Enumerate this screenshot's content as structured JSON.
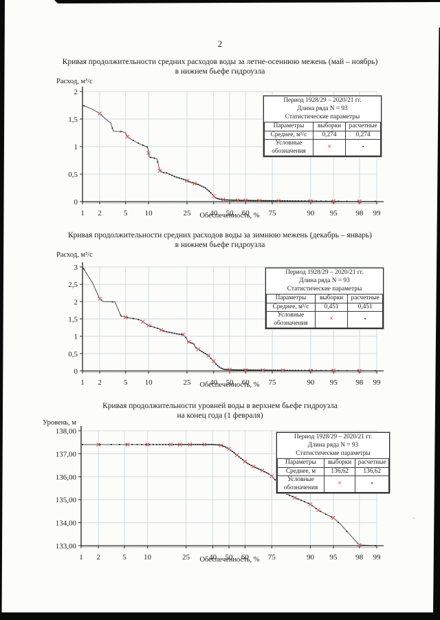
{
  "page": {
    "number": "2"
  },
  "colors": {
    "grid": "#ccdbe3",
    "curve": "#3c3c3c",
    "dot": "#1e1e1e",
    "cross": "#d06060",
    "axis": "#2e2e2e",
    "scan_edge": "#0a0a0a"
  },
  "charts": [
    {
      "title_line1": "Кривая продолжительности средних расходов воды за летне-осеннюю межень (май – ноябрь)",
      "title_line2": "в нижнем бьефе гидроузла",
      "y_axis_label": "Расход, м³/с",
      "x_axis_label": "Обеспеченность, %",
      "legend": {
        "period": "Период 1928/29 – 2020/21 гг.",
        "length": "Длина ряда N = 93",
        "stats_header": "Статистические параметры",
        "col_params": "Параметры",
        "col_sample": "выборки",
        "col_calc": "расчетные",
        "mean_label": "Среднее, м³/с",
        "mean_sample": "0,274",
        "mean_calc": "0,274",
        "symbols_label_1": "Условные",
        "symbols_label_2": "обозначения",
        "symbol_sample": "×",
        "symbol_calc": "•"
      },
      "chart_data": {
        "type": "line",
        "x_scale": "normal-probability",
        "xlabel": "Обеспеченность, %",
        "ylabel": "Расход, м³/с",
        "xlim": [
          1,
          99
        ],
        "ylim": [
          0,
          2
        ],
        "x_ticks": [
          1,
          2,
          5,
          10,
          25,
          40,
          50,
          60,
          75,
          90,
          95,
          98,
          99
        ],
        "y_ticks": [
          {
            "v": 2,
            "label": "2"
          },
          {
            "v": 1.5,
            "label": "1,5"
          },
          {
            "v": 1,
            "label": "1"
          },
          {
            "v": 0.5,
            "label": "0,5"
          },
          {
            "v": 0,
            "label": "0"
          }
        ],
        "n_points": 93,
        "points": [
          [
            1,
            1.75
          ],
          [
            1.5,
            1.68
          ],
          [
            2,
            1.6
          ],
          [
            2.5,
            1.5
          ],
          [
            3,
            1.43
          ],
          [
            3.3,
            1.28
          ],
          [
            4.5,
            1.27
          ],
          [
            5,
            1.25
          ],
          [
            5.3,
            1.18
          ],
          [
            6,
            1.13
          ],
          [
            7,
            1.08
          ],
          [
            8,
            1.04
          ],
          [
            9,
            1.01
          ],
          [
            9.7,
            0.99
          ],
          [
            10.2,
            0.81
          ],
          [
            11,
            0.8
          ],
          [
            12.5,
            0.78
          ],
          [
            13.5,
            0.56
          ],
          [
            14.5,
            0.53
          ],
          [
            16,
            0.52
          ],
          [
            17.5,
            0.49
          ],
          [
            19,
            0.46
          ],
          [
            21,
            0.43
          ],
          [
            23,
            0.41
          ],
          [
            25,
            0.38
          ],
          [
            27,
            0.35
          ],
          [
            29,
            0.33
          ],
          [
            31,
            0.31
          ],
          [
            33,
            0.28
          ],
          [
            35,
            0.25
          ],
          [
            36.5,
            0.21
          ],
          [
            38,
            0.17
          ],
          [
            39.5,
            0.12
          ],
          [
            41,
            0.07
          ],
          [
            43,
            0.05
          ],
          [
            45,
            0.04
          ],
          [
            47,
            0.032
          ],
          [
            50,
            0.028
          ],
          [
            55,
            0.024
          ],
          [
            60,
            0.022
          ],
          [
            65,
            0.02
          ],
          [
            70,
            0.018
          ],
          [
            75,
            0.016
          ],
          [
            80,
            0.014
          ],
          [
            85,
            0.012
          ],
          [
            90,
            0.011
          ],
          [
            93,
            0.009
          ],
          [
            95,
            0.008
          ],
          [
            97,
            0.006
          ],
          [
            98,
            0.005
          ],
          [
            99,
            0.004
          ]
        ],
        "cross_p": [
          2,
          5.3,
          10,
          13.5,
          25,
          29,
          40,
          46,
          55,
          60,
          68,
          78,
          90,
          95,
          98
        ]
      }
    },
    {
      "title_line1": "Кривая продолжительности средних расходов воды за зимнюю межень (декабрь – январь)",
      "title_line2": "в нижнем бьефе гидроузла",
      "y_axis_label": "Расход, м³/с",
      "x_axis_label": "Обеспеченность, %",
      "legend": {
        "period": "Период 1928/29 – 2020/21 гг.",
        "length": "Длина ряда N = 93",
        "stats_header": "Статистические параметры",
        "col_params": "Параметры",
        "col_sample": "выборки",
        "col_calc": "расчетные",
        "mean_label": "Среднее, м³/с",
        "mean_sample": "0,451",
        "mean_calc": "0,451",
        "symbols_label_1": "Условные",
        "symbols_label_2": "обозначения",
        "symbol_sample": "×",
        "symbol_calc": "•"
      },
      "chart_data": {
        "type": "line",
        "x_scale": "normal-probability",
        "xlabel": "Обеспеченность, %",
        "ylabel": "Расход, м³/с",
        "xlim": [
          1,
          99
        ],
        "ylim": [
          0,
          3
        ],
        "x_ticks": [
          1,
          2,
          5,
          10,
          25,
          40,
          50,
          60,
          75,
          90,
          95,
          98,
          99
        ],
        "y_ticks": [
          {
            "v": 3,
            "label": "3"
          },
          {
            "v": 2.5,
            "label": "2,5"
          },
          {
            "v": 2,
            "label": "2"
          },
          {
            "v": 1.5,
            "label": "1,5"
          },
          {
            "v": 1,
            "label": "1"
          },
          {
            "v": 0.5,
            "label": "0,5"
          },
          {
            "v": 0,
            "label": "0"
          }
        ],
        "n_points": 93,
        "points": [
          [
            1,
            3.0
          ],
          [
            1.5,
            2.55
          ],
          [
            2,
            2.08
          ],
          [
            2.3,
            2.0
          ],
          [
            3.5,
            1.99
          ],
          [
            4.3,
            1.58
          ],
          [
            5,
            1.55
          ],
          [
            6,
            1.52
          ],
          [
            7,
            1.5
          ],
          [
            8,
            1.46
          ],
          [
            9,
            1.38
          ],
          [
            10,
            1.31
          ],
          [
            11,
            1.28
          ],
          [
            12,
            1.25
          ],
          [
            13,
            1.22
          ],
          [
            14,
            1.18
          ],
          [
            15,
            1.15
          ],
          [
            16.5,
            1.12
          ],
          [
            18,
            1.1
          ],
          [
            19.5,
            1.08
          ],
          [
            21,
            1.06
          ],
          [
            23,
            1.05
          ],
          [
            24.5,
            0.96
          ],
          [
            25.5,
            0.85
          ],
          [
            27,
            0.81
          ],
          [
            28.5,
            0.79
          ],
          [
            29.5,
            0.68
          ],
          [
            31,
            0.62
          ],
          [
            33,
            0.56
          ],
          [
            35,
            0.5
          ],
          [
            37,
            0.44
          ],
          [
            38.5,
            0.35
          ],
          [
            40,
            0.28
          ],
          [
            41.5,
            0.2
          ],
          [
            43,
            0.13
          ],
          [
            44.5,
            0.08
          ],
          [
            46,
            0.05
          ],
          [
            48,
            0.04
          ],
          [
            50,
            0.033
          ],
          [
            55,
            0.028
          ],
          [
            60,
            0.025
          ],
          [
            65,
            0.023
          ],
          [
            70,
            0.021
          ],
          [
            75,
            0.019
          ],
          [
            80,
            0.016
          ],
          [
            85,
            0.014
          ],
          [
            90,
            0.012
          ],
          [
            93,
            0.01
          ],
          [
            95,
            0.009
          ],
          [
            97,
            0.007
          ],
          [
            98,
            0.006
          ],
          [
            99,
            0.005
          ]
        ],
        "cross_p": [
          2,
          5,
          8.5,
          10,
          14,
          23,
          26,
          31,
          37,
          40,
          50,
          60,
          70,
          80,
          90,
          95,
          98
        ]
      }
    },
    {
      "title_line1": "Кривая продолжительности уровней воды в верхнем бьефе гидроузла",
      "title_line2": "на конец года (1 февраля)",
      "y_axis_label": "Уровень, м",
      "x_axis_label": "Обеспеченность, %",
      "legend": {
        "period": "Период 1928/29 – 2020/21 гг.",
        "length": "Длина ряда N = 93",
        "stats_header": "Статистические параметры",
        "col_params": "Параметры",
        "col_sample": "выборки",
        "col_calc": "расчетные",
        "mean_label": "Среднее, м",
        "mean_sample": "136,62",
        "mean_calc": "136,62",
        "symbols_label_1": "Условные",
        "symbols_label_2": "обозначения",
        "symbol_sample": "×",
        "symbol_calc": "•"
      },
      "chart_data": {
        "type": "line",
        "x_scale": "normal-probability",
        "xlabel": "Обеспеченность, %",
        "ylabel": "Уровень, м",
        "xlim": [
          1,
          99
        ],
        "ylim": [
          133,
          138
        ],
        "x_ticks": [
          1,
          2,
          5,
          10,
          25,
          40,
          50,
          60,
          75,
          90,
          95,
          98,
          99
        ],
        "y_ticks": [
          {
            "v": 138,
            "label": "138,00"
          },
          {
            "v": 137,
            "label": "137,00"
          },
          {
            "v": 136,
            "label": "136,00"
          },
          {
            "v": 135,
            "label": "135,00"
          },
          {
            "v": 134,
            "label": "134,00"
          },
          {
            "v": 133,
            "label": "133,00"
          }
        ],
        "n_points": 93,
        "points": [
          [
            1,
            137.4
          ],
          [
            5,
            137.4
          ],
          [
            10,
            137.4
          ],
          [
            15,
            137.4
          ],
          [
            20,
            137.4
          ],
          [
            25,
            137.4
          ],
          [
            30,
            137.4
          ],
          [
            35,
            137.4
          ],
          [
            40,
            137.4
          ],
          [
            44,
            137.38
          ],
          [
            46,
            137.35
          ],
          [
            48,
            137.29
          ],
          [
            50,
            137.21
          ],
          [
            52,
            137.11
          ],
          [
            54,
            137.0
          ],
          [
            56,
            136.89
          ],
          [
            58,
            136.77
          ],
          [
            60,
            136.66
          ],
          [
            62,
            136.56
          ],
          [
            64,
            136.48
          ],
          [
            66,
            136.41
          ],
          [
            68,
            136.34
          ],
          [
            70,
            136.27
          ],
          [
            72,
            136.19
          ],
          [
            74,
            136.1
          ],
          [
            75,
            136.02
          ],
          [
            76,
            135.93
          ],
          [
            77,
            135.83
          ],
          [
            77.6,
            135.58
          ],
          [
            78.2,
            135.45
          ],
          [
            79,
            135.4
          ],
          [
            80,
            135.35
          ],
          [
            82,
            135.24
          ],
          [
            84,
            135.14
          ],
          [
            86,
            135.04
          ],
          [
            88,
            134.93
          ],
          [
            90,
            134.8
          ],
          [
            91,
            134.68
          ],
          [
            92,
            134.55
          ],
          [
            93,
            134.44
          ],
          [
            94,
            134.33
          ],
          [
            95,
            134.21
          ],
          [
            96,
            133.95
          ],
          [
            97,
            133.55
          ],
          [
            98,
            133.03
          ],
          [
            99,
            133.0
          ]
        ],
        "cross_p": [
          2,
          5.5,
          10,
          18,
          22,
          27,
          35,
          45,
          50,
          55,
          60,
          65,
          70,
          75,
          80,
          85,
          90,
          92,
          95,
          98
        ]
      }
    }
  ]
}
